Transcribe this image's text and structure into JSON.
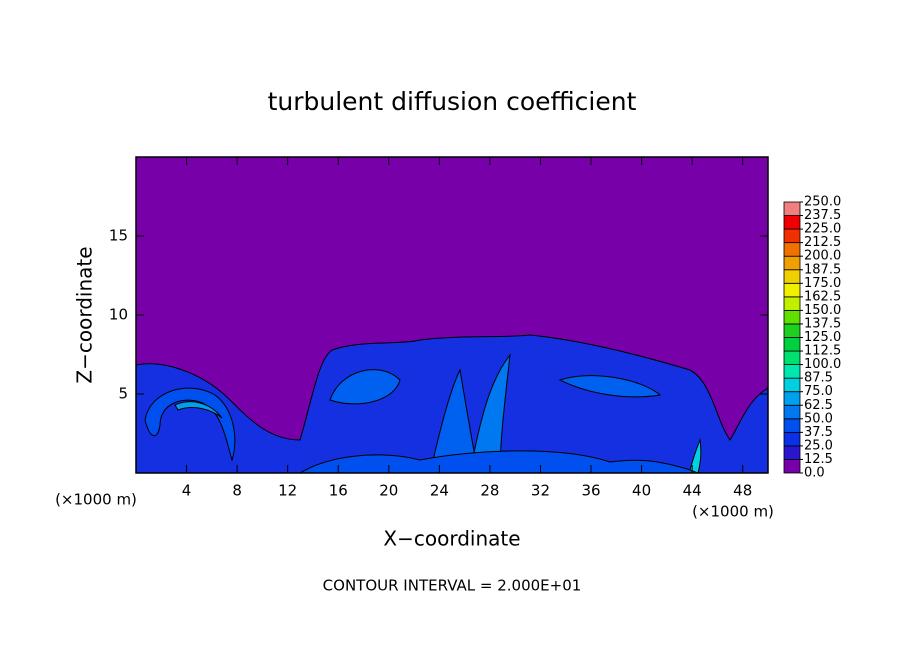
{
  "chart_data": {
    "type": "contour",
    "title": "turbulent diffusion coefficient",
    "x_label": "X−coordinate",
    "y_label": "Z−coordinate",
    "x_unit_label": "(×1000 m)",
    "footer": "CONTOUR INTERVAL = 2.000E+01",
    "xlim": [
      0,
      50
    ],
    "xticks": [
      4,
      8,
      12,
      16,
      20,
      24,
      28,
      32,
      36,
      40,
      44,
      48
    ],
    "ylim": [
      0,
      20
    ],
    "yticks": [
      5,
      10,
      15
    ],
    "background_color": "#7800a8",
    "colorbar": {
      "lim": [
        0,
        250
      ],
      "ticks": [
        {
          "value": 0,
          "label": "0.0"
        },
        {
          "value": 12.5,
          "label": "12.5"
        },
        {
          "value": 25,
          "label": "25.0"
        },
        {
          "value": 37.5,
          "label": "37.5"
        },
        {
          "value": 50,
          "label": "50.0"
        },
        {
          "value": 62.5,
          "label": "62.5"
        },
        {
          "value": 75,
          "label": "75.0"
        },
        {
          "value": 87.5,
          "label": "87.5"
        },
        {
          "value": 100,
          "label": "100.0"
        },
        {
          "value": 112.5,
          "label": "112.5"
        },
        {
          "value": 125,
          "label": "125.0"
        },
        {
          "value": 137.5,
          "label": "137.5"
        },
        {
          "value": 150,
          "label": "150.0"
        },
        {
          "value": 162.5,
          "label": "162.5"
        },
        {
          "value": 175,
          "label": "175.0"
        },
        {
          "value": 187.5,
          "label": "187.5"
        },
        {
          "value": 200,
          "label": "200.0"
        },
        {
          "value": 212.5,
          "label": "212.5"
        },
        {
          "value": 225,
          "label": "225.0"
        },
        {
          "value": 237.5,
          "label": "237.5"
        },
        {
          "value": 250,
          "label": "250.0"
        }
      ],
      "colors": [
        "#7800a8",
        "#2a14d0",
        "#0a30e8",
        "#0050f0",
        "#0078f0",
        "#00a0f0",
        "#00d0e0",
        "#00e8b0",
        "#00e070",
        "#00d040",
        "#20d020",
        "#60e000",
        "#c0f000",
        "#f0f000",
        "#f0d000",
        "#f0a000",
        "#f07000",
        "#f03000",
        "#f00000",
        "#f08080"
      ]
    }
  }
}
